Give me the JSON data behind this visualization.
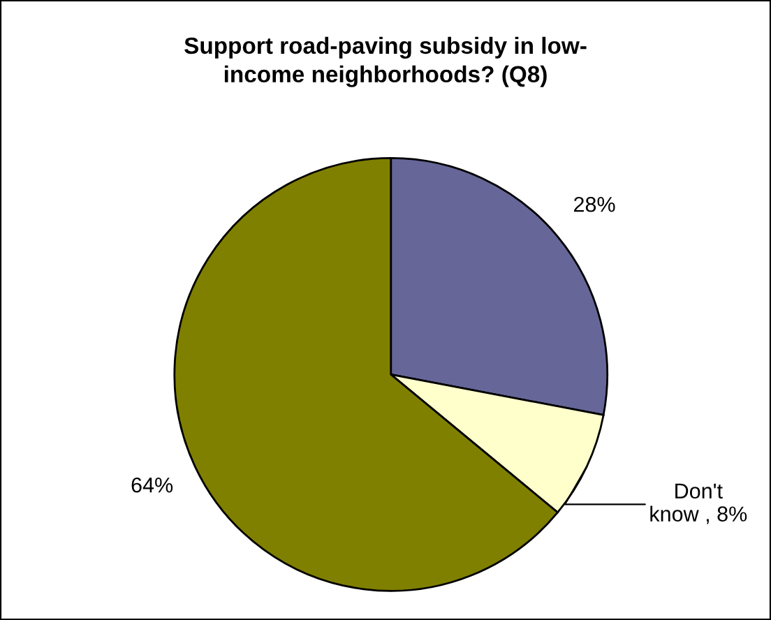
{
  "chart_data": {
    "type": "pie",
    "title": "Support road-paving subsidy in low-\nincome neighborhoods? (Q8)",
    "categories": [
      null,
      null,
      null
    ],
    "values": [
      28,
      8,
      64
    ],
    "colors": [
      "#666699",
      "#ffffcc",
      "#808000"
    ],
    "value_labels": [
      "28%",
      "Don't\nknow , 8%",
      "64%"
    ],
    "legend": false
  }
}
